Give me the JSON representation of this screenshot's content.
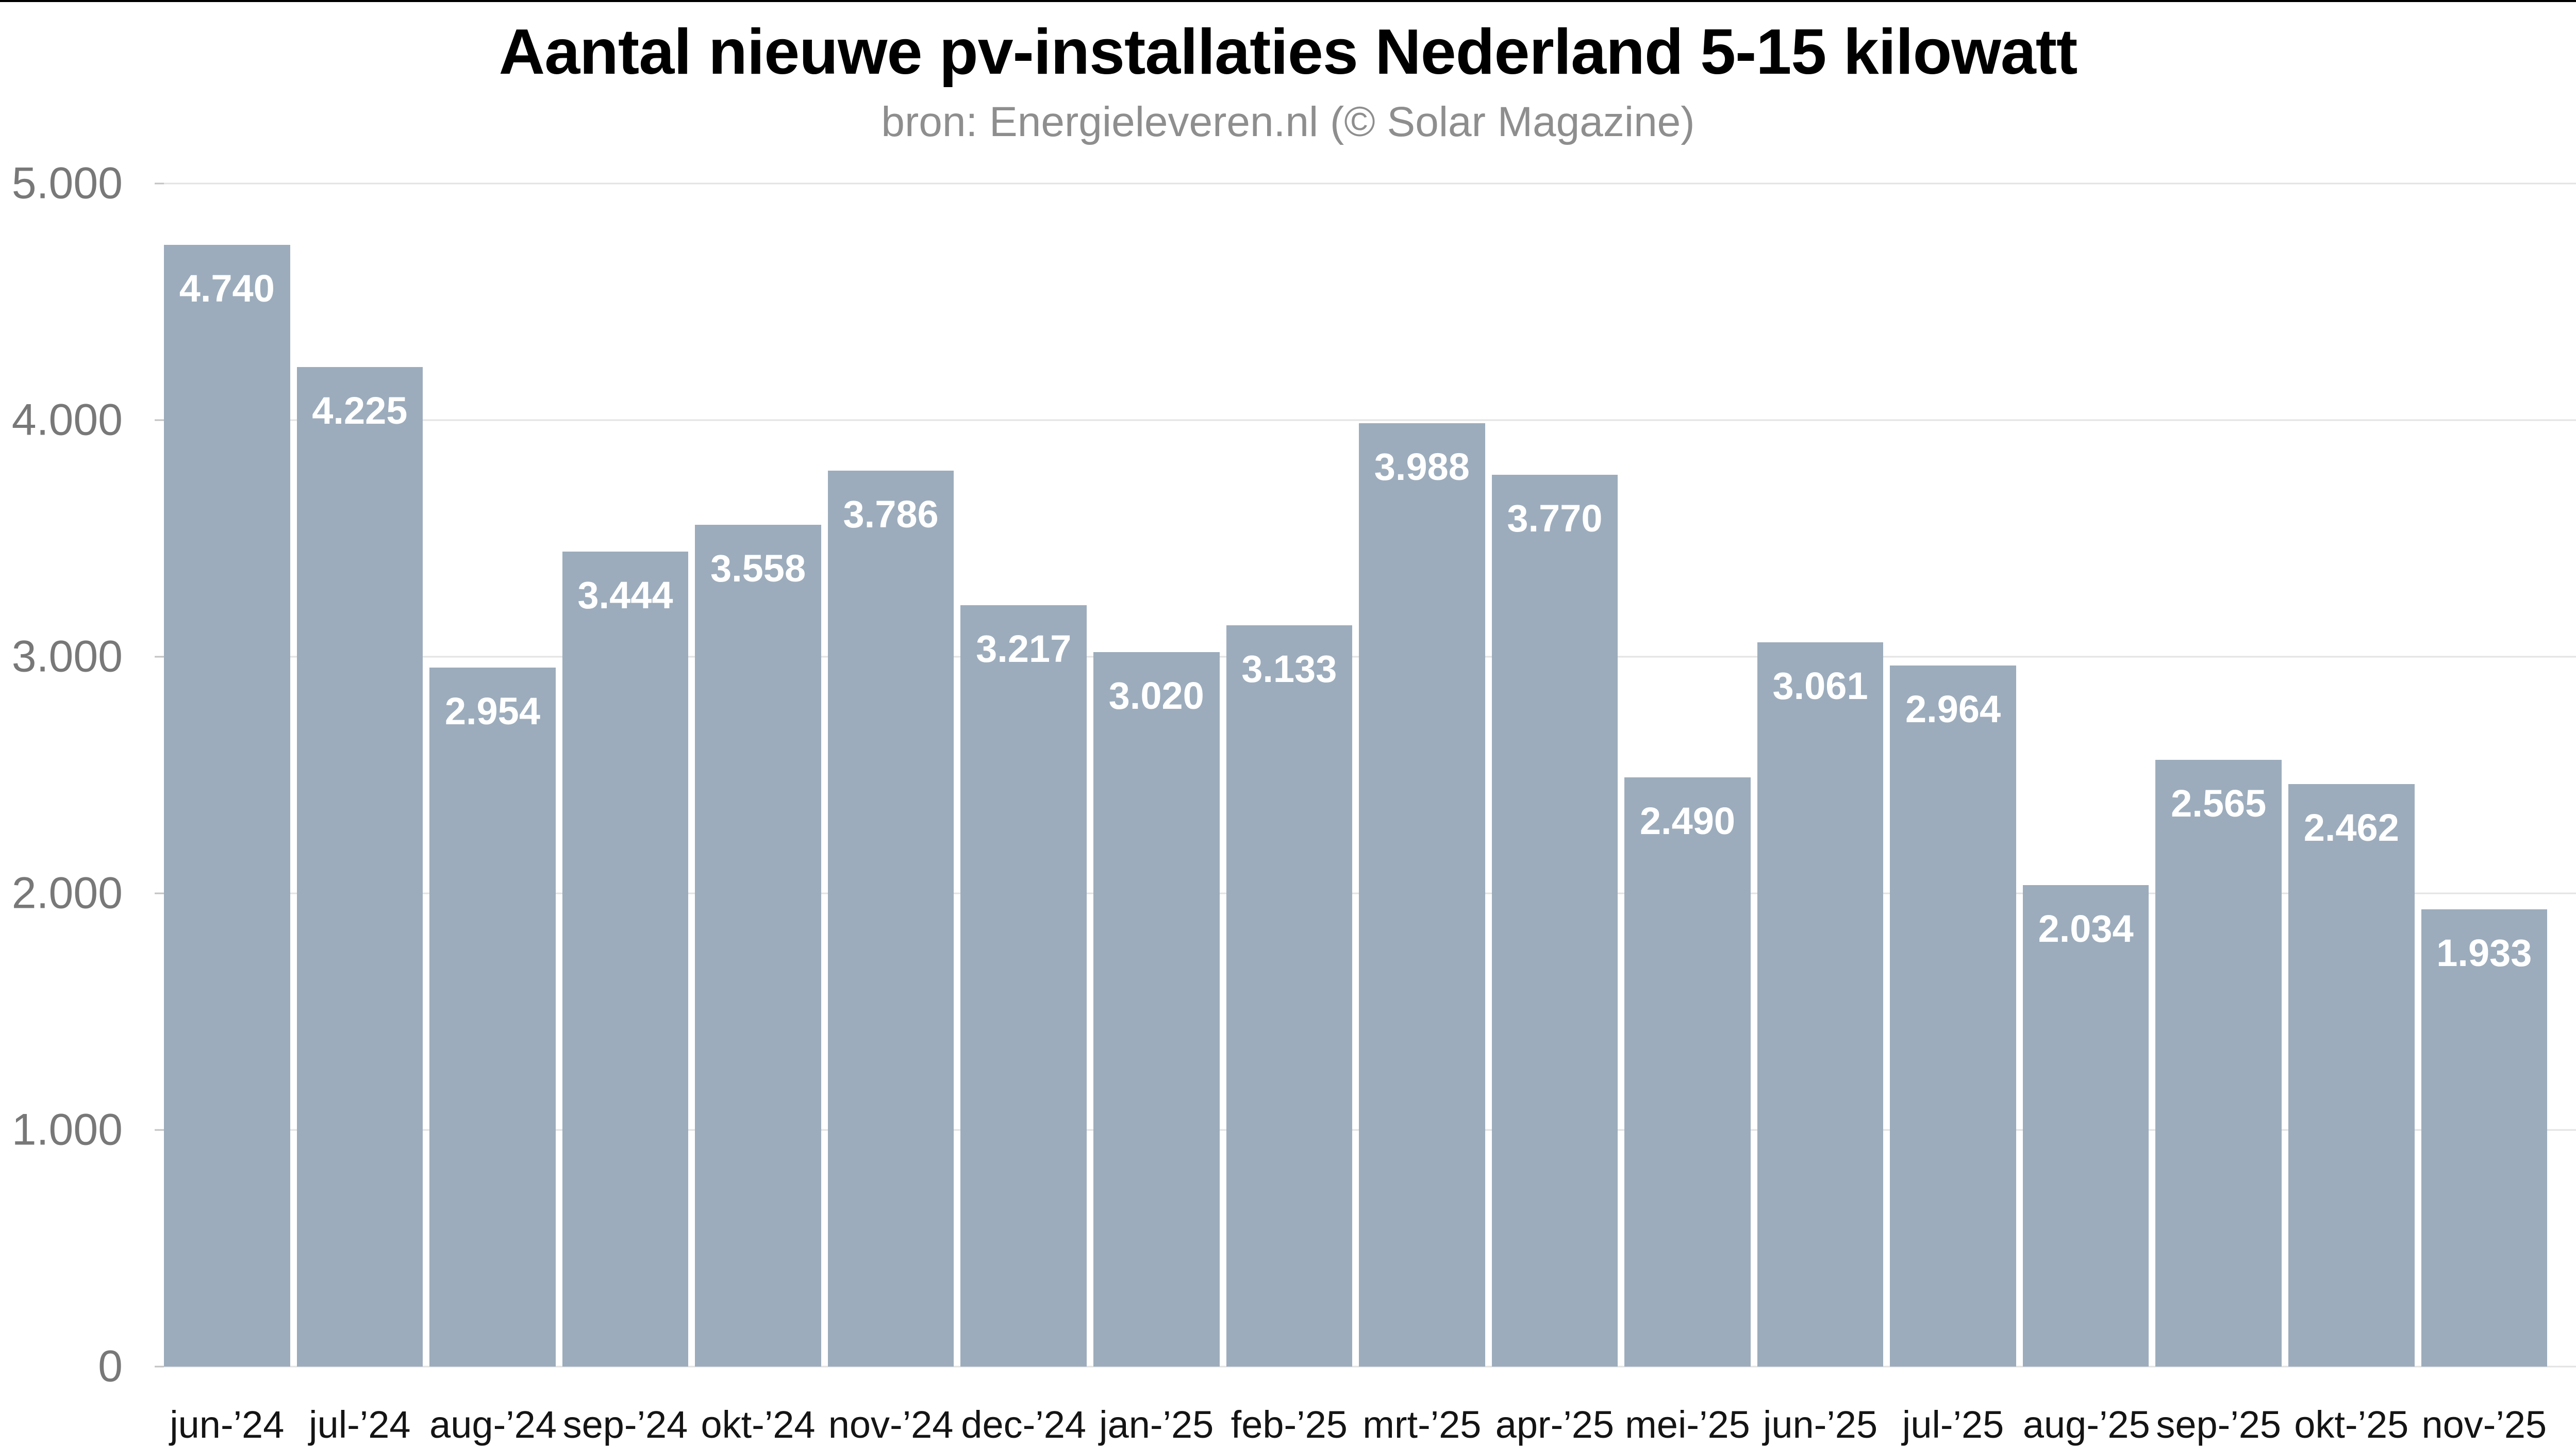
{
  "chart_data": {
    "type": "bar",
    "title": "Aantal nieuwe pv-installaties Nederland 5-15 kilowatt",
    "subtitle": "bron: Energieleveren.nl (© Solar Magazine)",
    "categories": [
      "jun-’24",
      "jul-’24",
      "aug-’24",
      "sep-’24",
      "okt-’24",
      "nov-’24",
      "dec-’24",
      "jan-’25",
      "feb-’25",
      "mrt-’25",
      "apr-’25",
      "mei-’25",
      "jun-’25",
      "jul-’25",
      "aug-’25",
      "sep-’25",
      "okt-’25",
      "nov-’25"
    ],
    "values": [
      4740,
      4225,
      2954,
      3444,
      3558,
      3786,
      3217,
      3020,
      3133,
      3988,
      3770,
      2490,
      3061,
      2964,
      2034,
      2565,
      2462,
      1933
    ],
    "value_labels": [
      "4.740",
      "4.225",
      "2.954",
      "3.444",
      "3.558",
      "3.786",
      "3.217",
      "3.020",
      "3.133",
      "3.988",
      "3.770",
      "2.490",
      "3.061",
      "2.964",
      "2.034",
      "2.565",
      "2.462",
      "1.933"
    ],
    "xlabel": "",
    "ylabel": "",
    "ylim": [
      0,
      5000
    ],
    "grid": true,
    "legend": false,
    "y_axis": {
      "ticks": [
        {
          "value": 5000,
          "label": "5.000"
        },
        {
          "value": 4000,
          "label": "4.000"
        },
        {
          "value": 3000,
          "label": "3.000"
        },
        {
          "value": 2000,
          "label": "2.000"
        },
        {
          "value": 1000,
          "label": "1.000"
        },
        {
          "value": 0,
          "label": "0"
        }
      ]
    },
    "style": {
      "bar_color": "#9cacbc",
      "bar_label_color": "#ffffff",
      "grid_color": "#e3e3e3",
      "tick_color": "#c2c2c2",
      "y_label_color": "#787878",
      "x_label_color": "#141414",
      "title_color": "#000000",
      "subtitle_color": "#8e8e8e",
      "background": "#ffffff",
      "top_border_color": "#000000"
    }
  }
}
